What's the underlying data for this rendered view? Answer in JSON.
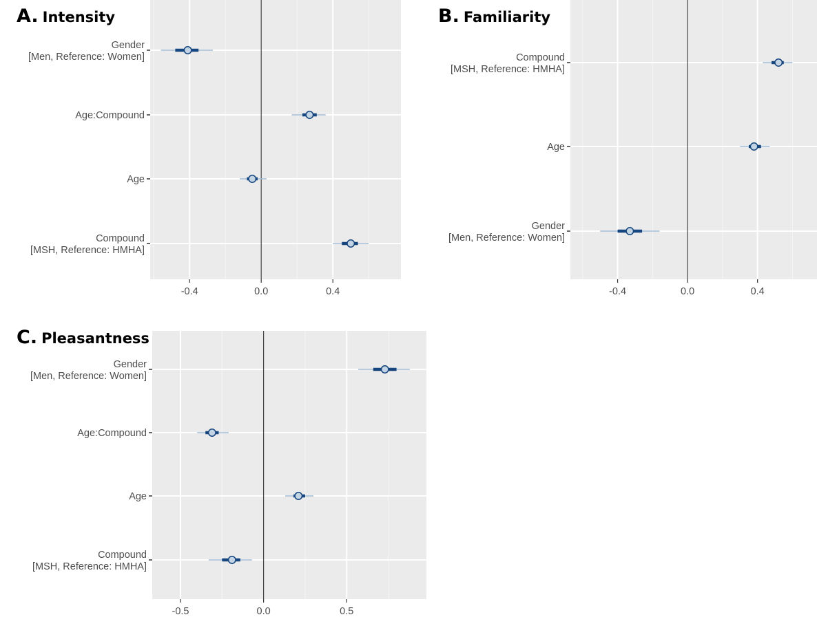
{
  "chart_data": [
    {
      "type": "scatter",
      "panel_letter": "A.",
      "title": "Intensity",
      "xlim": [
        -0.62,
        0.78
      ],
      "xticks": [
        -0.4,
        0.0,
        0.4
      ],
      "xtick_labels": [
        "-0.4",
        "0.0",
        "0.4"
      ],
      "grid": true,
      "rows": [
        {
          "label": [
            "Gender",
            "[Men, Reference: Women]"
          ],
          "estimate": -0.41,
          "inner": [
            -0.48,
            -0.35
          ],
          "outer": [
            -0.56,
            -0.27
          ]
        },
        {
          "label": [
            "Age:Compound"
          ],
          "estimate": 0.27,
          "inner": [
            0.23,
            0.31
          ],
          "outer": [
            0.17,
            0.36
          ]
        },
        {
          "label": [
            "Age"
          ],
          "estimate": -0.05,
          "inner": [
            -0.08,
            -0.02
          ],
          "outer": [
            -0.12,
            0.03
          ]
        },
        {
          "label": [
            "Compound",
            "[MSH, Reference: HMHA]"
          ],
          "estimate": 0.5,
          "inner": [
            0.45,
            0.54
          ],
          "outer": [
            0.4,
            0.6
          ]
        }
      ]
    },
    {
      "type": "scatter",
      "panel_letter": "B.",
      "title": "Familiarity",
      "xlim": [
        -0.67,
        0.74
      ],
      "xticks": [
        -0.4,
        0.0,
        0.4
      ],
      "xtick_labels": [
        "-0.4",
        "0.0",
        "0.4"
      ],
      "grid": true,
      "rows": [
        {
          "label": [
            "Compound",
            "[MSH, Reference: HMHA]"
          ],
          "estimate": 0.52,
          "inner": [
            0.48,
            0.55
          ],
          "outer": [
            0.43,
            0.6
          ]
        },
        {
          "label": [
            "Age"
          ],
          "estimate": 0.38,
          "inner": [
            0.35,
            0.42
          ],
          "outer": [
            0.3,
            0.47
          ]
        },
        {
          "label": [
            "Gender",
            "[Men, Reference: Women]"
          ],
          "estimate": -0.33,
          "inner": [
            -0.4,
            -0.26
          ],
          "outer": [
            -0.5,
            -0.16
          ]
        }
      ]
    },
    {
      "type": "scatter",
      "panel_letter": "C.",
      "title": "Pleasantness",
      "xlim": [
        -0.67,
        0.98
      ],
      "xticks": [
        -0.5,
        0.0,
        0.5
      ],
      "xtick_labels": [
        "-0.5",
        "0.0",
        "0.5"
      ],
      "grid": true,
      "rows": [
        {
          "label": [
            "Gender",
            "[Men, Reference: Women]"
          ],
          "estimate": 0.73,
          "inner": [
            0.66,
            0.8
          ],
          "outer": [
            0.57,
            0.88
          ]
        },
        {
          "label": [
            "Age:Compound"
          ],
          "estimate": -0.31,
          "inner": [
            -0.35,
            -0.27
          ],
          "outer": [
            -0.4,
            -0.21
          ]
        },
        {
          "label": [
            "Age"
          ],
          "estimate": 0.21,
          "inner": [
            0.18,
            0.25
          ],
          "outer": [
            0.13,
            0.3
          ]
        },
        {
          "label": [
            "Compound",
            "[MSH, Reference: HMHA]"
          ],
          "estimate": -0.19,
          "inner": [
            -0.25,
            -0.14
          ],
          "outer": [
            -0.33,
            -0.07
          ]
        }
      ]
    }
  ],
  "colors": {
    "panel_background": "#ebebeb",
    "grid_major": "#ffffff",
    "grid_minor": "#f5f5f5",
    "zero_line": "#444444",
    "inner_interval": "#17467f",
    "outer_interval": "#9dbbd3",
    "point_fill": "#c3d5e5",
    "point_stroke": "#17467f"
  }
}
